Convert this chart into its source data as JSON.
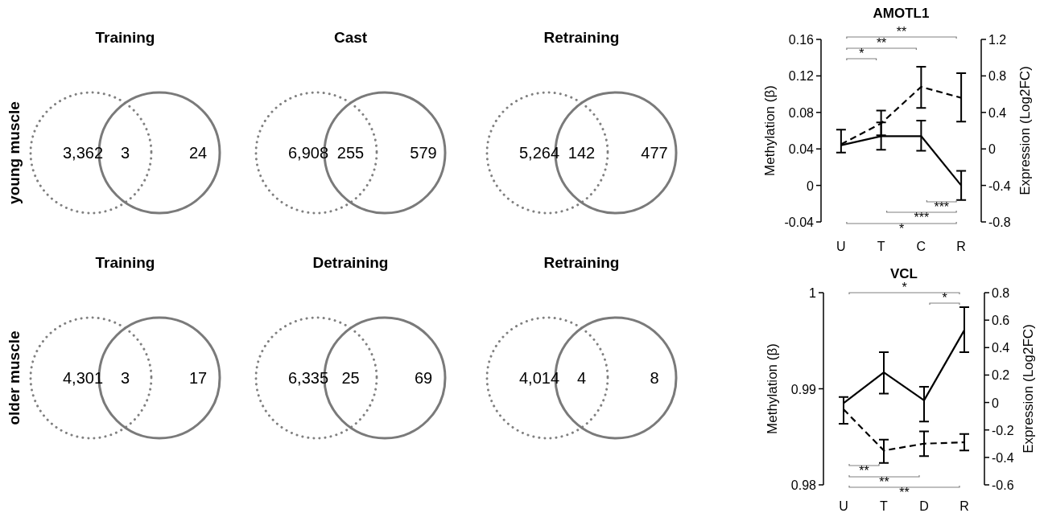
{
  "chart_data": [
    {
      "type": "other",
      "title": "Training",
      "value_labels": [
        "3,362",
        "3",
        "24"
      ],
      "annotations": [
        "young muscle"
      ]
    },
    {
      "type": "other",
      "title": "Cast",
      "value_labels": [
        "6,908",
        "255",
        "579"
      ]
    },
    {
      "type": "other",
      "title": "Retraining",
      "value_labels": [
        "5,264",
        "142",
        "477"
      ]
    },
    {
      "type": "line",
      "title": "AMOTL1",
      "categories": [
        "U",
        "T",
        "C",
        "R"
      ],
      "ylabel": "Methylation (β)",
      "y2label": "Expression (Log2FC)",
      "ylim": [
        -0.04,
        0.16
      ],
      "yticks": [
        -0.04,
        0,
        0.04,
        0.08,
        0.12,
        0.16
      ],
      "y2lim": [
        -0.8,
        1.2
      ],
      "y2ticks": [
        -0.8,
        -0.4,
        0,
        0.4,
        0.8,
        1.2
      ],
      "marker": "none",
      "annotations": [
        "**",
        "**",
        "*",
        "***",
        "***",
        "*"
      ],
      "series": [
        {
          "color": "#000000",
          "line_style": "solid",
          "values": [
            0.044,
            0.054,
            0.054,
            0.0
          ],
          "errors": [
            [
              0.036,
              0.061
            ],
            [
              0.039,
              0.069
            ],
            [
              0.038,
              0.071
            ],
            [
              -0.016,
              0.016
            ]
          ]
        },
        {
          "color": "#000000",
          "line_style": "dashed",
          "axis": "y2",
          "values": [
            0.05,
            0.28,
            0.68,
            0.56
          ],
          "errors": [
            null,
            [
              0.15,
              0.42
            ],
            [
              0.45,
              0.9
            ],
            [
              0.3,
              0.83
            ]
          ]
        }
      ]
    },
    {
      "type": "other",
      "title": "Training",
      "value_labels": [
        "4,301",
        "3",
        "17"
      ],
      "annotations": [
        "older muscle"
      ]
    },
    {
      "type": "other",
      "title": "Detraining",
      "value_labels": [
        "6,335",
        "25",
        "69"
      ]
    },
    {
      "type": "other",
      "title": "Retraining",
      "value_labels": [
        "4,014",
        "4",
        "8"
      ]
    },
    {
      "type": "line",
      "title": "VCL",
      "categories": [
        "U",
        "T",
        "D",
        "R"
      ],
      "ylabel": "Methylation (β)",
      "y2label": "Expression (Log2FC)",
      "ylim": [
        0.98,
        1
      ],
      "yticks": [
        0.98,
        0.99,
        1
      ],
      "y2lim": [
        -0.6,
        0.8
      ],
      "y2ticks": [
        -0.6,
        -0.4,
        -0.2,
        0,
        0.2,
        0.4,
        0.6,
        0.8
      ],
      "marker": "none",
      "annotations": [
        "*",
        "*",
        "**",
        "**",
        "**"
      ],
      "series": [
        {
          "color": "#000000",
          "line_style": "solid",
          "values": [
            0.9885,
            0.9917,
            0.9888,
            0.9961
          ],
          "errors": [
            null,
            [
              0.9895,
              0.9938
            ],
            [
              0.9866,
              0.9902
            ],
            [
              0.9938,
              0.9985
            ]
          ]
        },
        {
          "color": "#000000",
          "line_style": "dashed",
          "axis": "y2",
          "values": [
            -0.05,
            -0.35,
            -0.3,
            -0.29
          ],
          "errors": [
            [
              -0.155,
              0.04
            ],
            [
              -0.44,
              -0.27
            ],
            [
              -0.39,
              -0.21
            ],
            [
              -0.35,
              -0.23
            ]
          ]
        }
      ]
    }
  ]
}
